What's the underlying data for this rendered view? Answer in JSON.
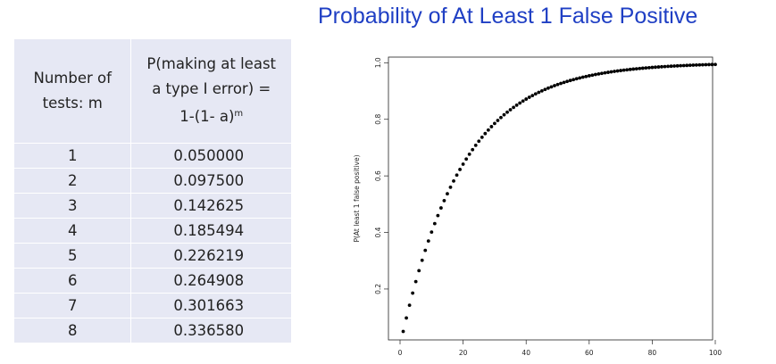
{
  "page": {
    "title": "Probability of At Least 1 False Positive"
  },
  "table": {
    "header_m_line1": "Number of",
    "header_m_line2": "tests:  m",
    "header_p_line1": "P(making at least",
    "header_p_line2": "a type I error) =",
    "header_p_line3": "1-(1- a)",
    "header_p_sup": "m",
    "rows": [
      {
        "m": "1",
        "p": "0.050000"
      },
      {
        "m": "2",
        "p": "0.097500"
      },
      {
        "m": "3",
        "p": "0.142625"
      },
      {
        "m": "4",
        "p": "0.185494"
      },
      {
        "m": "5",
        "p": "0.226219"
      },
      {
        "m": "6",
        "p": "0.264908"
      },
      {
        "m": "7",
        "p": "0.301663"
      },
      {
        "m": "8",
        "p": "0.336580"
      }
    ]
  },
  "chart_data": {
    "type": "scatter",
    "title": "",
    "xlabel": "",
    "ylabel": "P(At least 1 false positive)",
    "xlim": [
      0,
      100
    ],
    "ylim": [
      0.02,
      1.02
    ],
    "x_ticks": [
      "0",
      "20",
      "40",
      "60",
      "80",
      "100"
    ],
    "y_ticks": [
      "0.2",
      "0.4",
      "0.6",
      "0.8",
      "1.0"
    ],
    "x_tick_values": [
      0,
      20,
      40,
      60,
      80,
      100
    ],
    "y_tick_values": [
      0.2,
      0.4,
      0.6,
      0.8,
      1.0
    ],
    "alpha": 0.05,
    "x_start": 1,
    "x_end": 100,
    "grid": false,
    "marker_color": "#000000"
  }
}
